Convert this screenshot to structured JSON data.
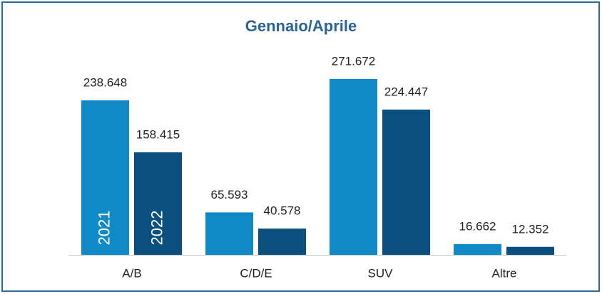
{
  "chart_data": {
    "type": "bar",
    "title": "Gennaio/Aprile",
    "categories": [
      "A/B",
      "C/D/E",
      "SUV",
      "Altre"
    ],
    "series": [
      {
        "name": "2021",
        "color": "#0f8ac6",
        "values": [
          238648,
          65593,
          271672,
          16662
        ],
        "value_labels": [
          "238.648",
          "65.593",
          "271.672",
          "16.662"
        ]
      },
      {
        "name": "2022",
        "color": "#0b4f7f",
        "values": [
          158415,
          40578,
          224447,
          12352
        ],
        "value_labels": [
          "158.415",
          "40.578",
          "224.447",
          "12.352"
        ]
      }
    ]
  }
}
